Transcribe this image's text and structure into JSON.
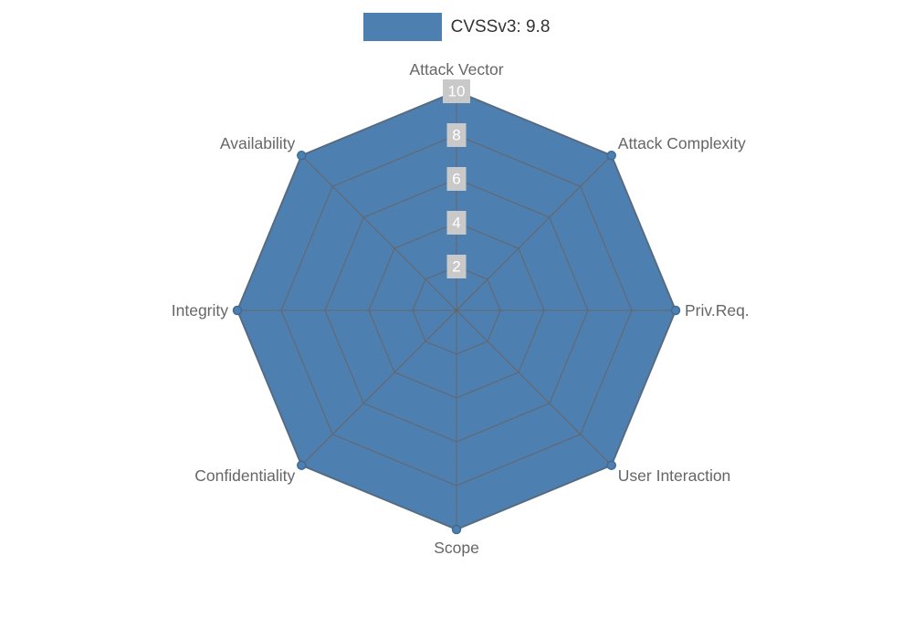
{
  "legend": {
    "label": "CVSSv3: 9.8"
  },
  "chart_data": {
    "type": "radar",
    "title": "CVSSv3: 9.8",
    "indicators": [
      "Attack Vector",
      "Attack Complexity",
      "Priv.Req.",
      "User Interaction",
      "Scope",
      "Confidentiality",
      "Integrity",
      "Availability"
    ],
    "series": [
      {
        "name": "CVSSv3: 9.8",
        "values": [
          10,
          10,
          10,
          10,
          10,
          10,
          10,
          10
        ]
      }
    ],
    "max": 10,
    "tick_interval": 2,
    "tick_labels": [
      "2",
      "4",
      "6",
      "8",
      "10"
    ],
    "legend_position": "top",
    "grid": true,
    "rings": 5,
    "colors": {
      "series_fill": "#4e7fb1",
      "series_line": "#46729f",
      "dot_stroke": "#3e6a96",
      "grid_line": "#666666",
      "axis_label": "#666666",
      "tick_label_text": "#ffffff",
      "tick_label_bg": "#c9c9c9",
      "legend_text": "#333333"
    }
  }
}
